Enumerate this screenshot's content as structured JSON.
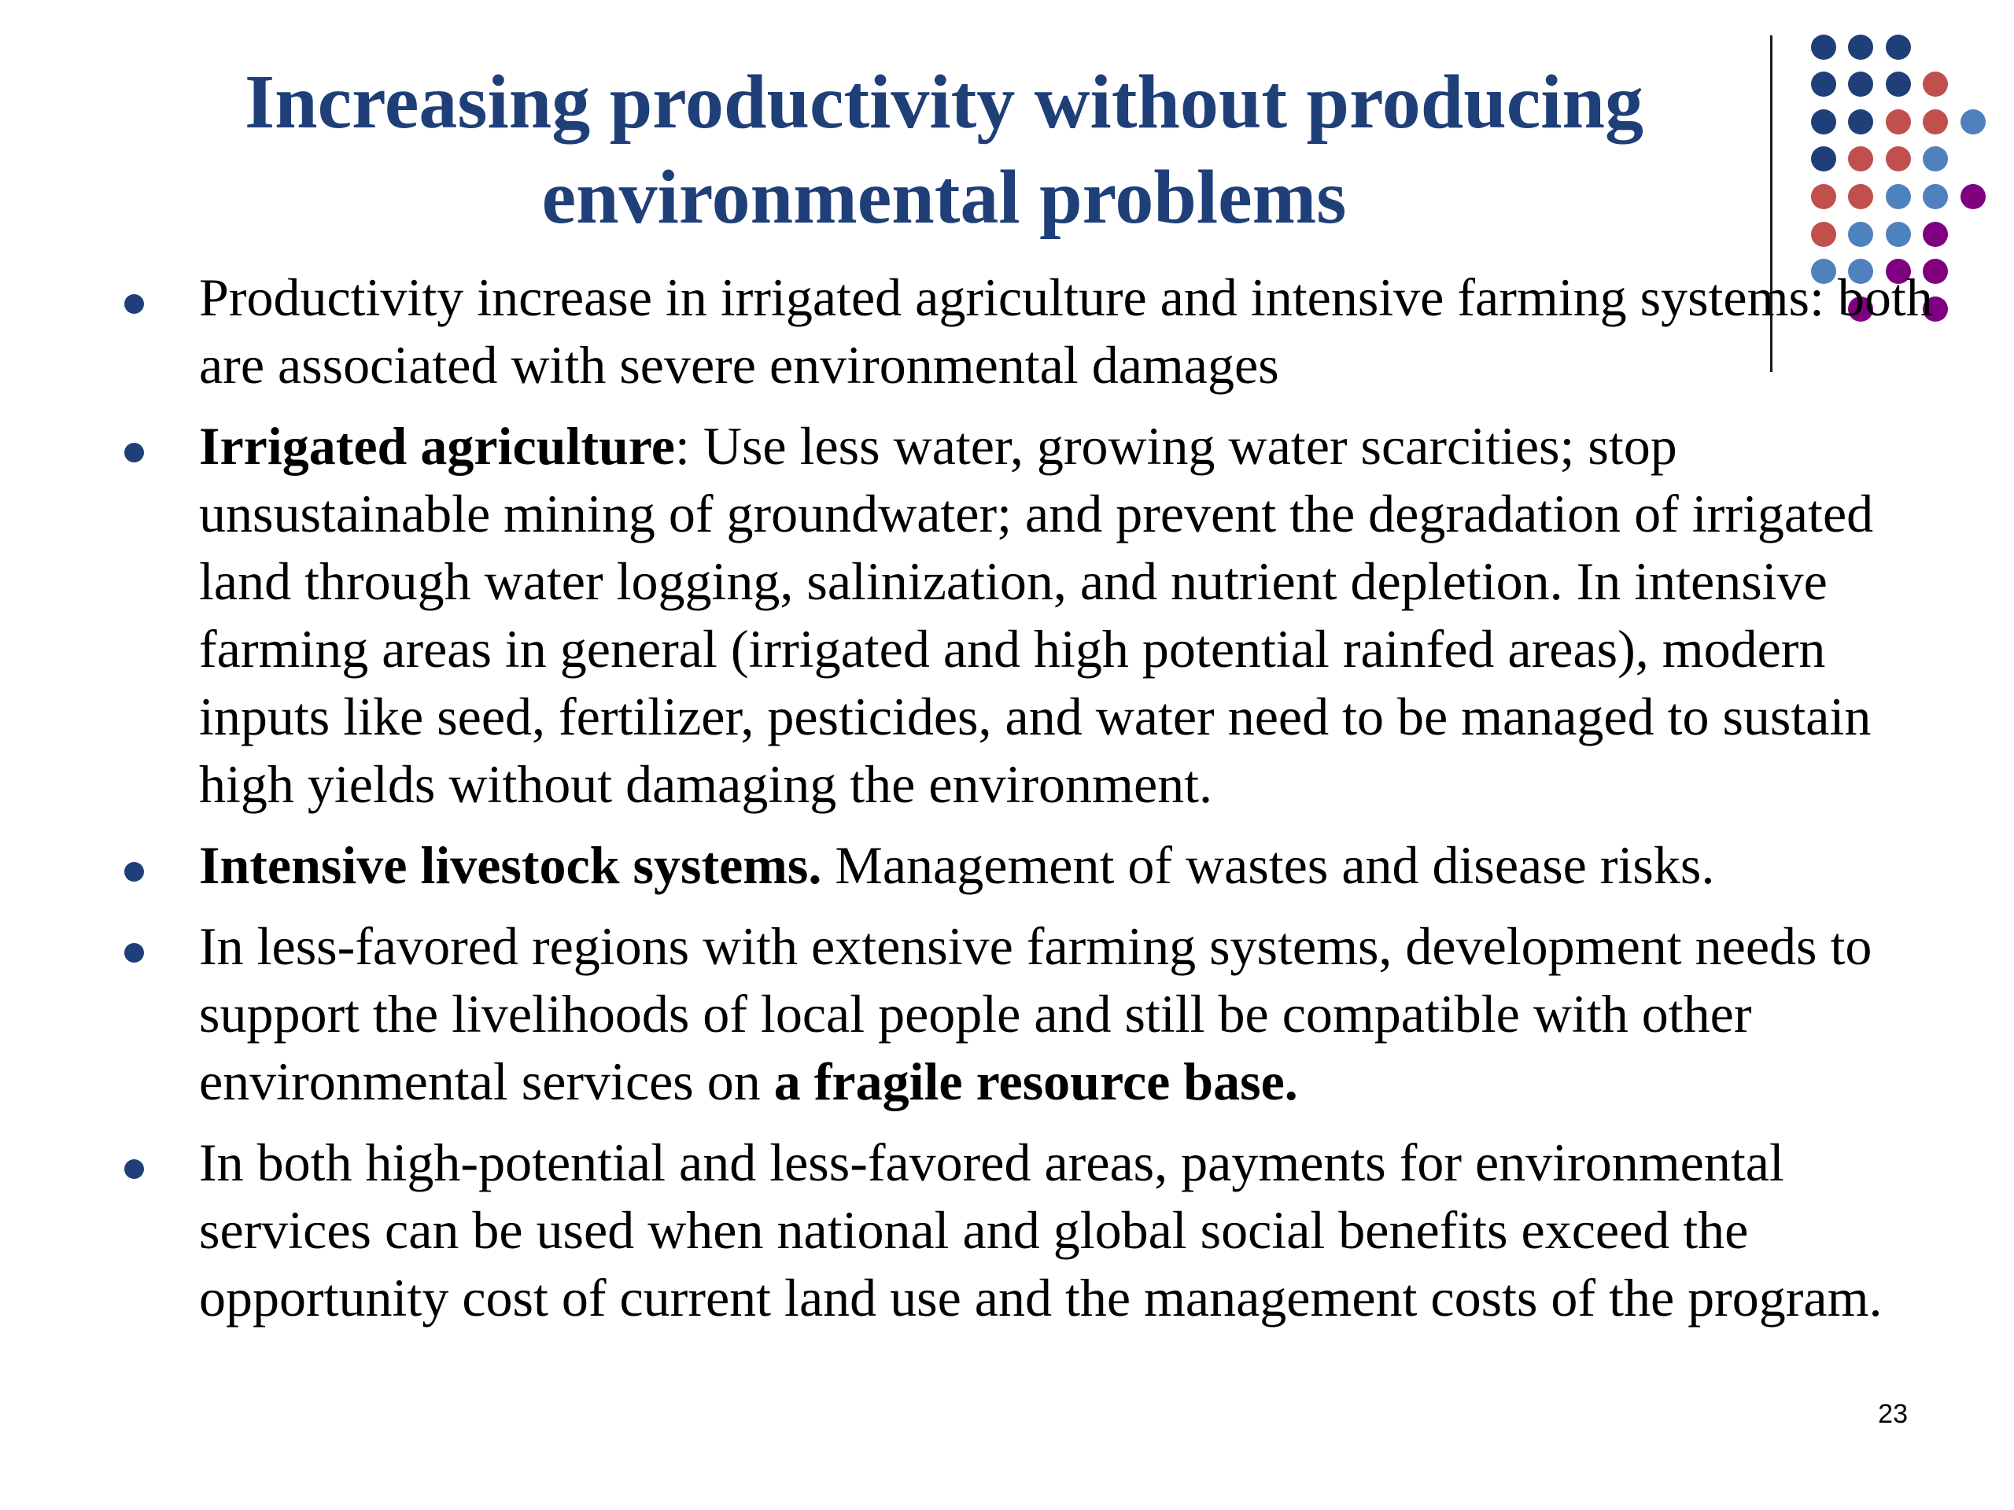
{
  "slide": {
    "title_lines": [
      "Increasing productivity without producing",
      "environmental problems"
    ],
    "page_number": "23"
  },
  "bullets": [
    {
      "segments": [
        {
          "text": "Productivity increase in irrigated agriculture and intensive farming systems: both are associated with severe environmental damages",
          "bold": false
        }
      ]
    },
    {
      "segments": [
        {
          "text": " ",
          "bold": false
        },
        {
          "text": "Irrigated agriculture",
          "bold": true
        },
        {
          "text": ": Use less water, growing water scarcities; stop unsustainable mining of groundwater; and prevent the degradation of irrigated land through water logging, salinization, and nutrient depletion. In intensive farming areas in general (irrigated and high potential rainfed areas), modern inputs like seed, fertilizer, pesticides, and water need to be managed to sustain high yields without damaging the environment.",
          "bold": false
        }
      ]
    },
    {
      "segments": [
        {
          "text": " ",
          "bold": false
        },
        {
          "text": "Intensive livestock systems.",
          "bold": true
        },
        {
          "text": " Management of wastes and disease risks.",
          "bold": false
        }
      ]
    },
    {
      "segments": [
        {
          "text": "In less-favored regions with extensive farming systems, development needs to support the livelihoods of local people and still be compatible with other environmental services on ",
          "bold": false
        },
        {
          "text": "a fragile resource base.",
          "bold": true
        }
      ]
    },
    {
      "segments": [
        {
          "text": "In both high-potential and less-favored areas, payments for environmental services can be used when national and global social benefits exceed the opportunity cost of current land use and the management costs of the program.",
          "bold": false
        }
      ]
    }
  ],
  "decoration": {
    "dot_colors": {
      "navy": "#1f3f78",
      "red": "#c0504d",
      "blue": "#4f81bd",
      "purple": "#800080"
    },
    "bullet_color": "#1f3f78",
    "title_color": "#1f3f78"
  }
}
